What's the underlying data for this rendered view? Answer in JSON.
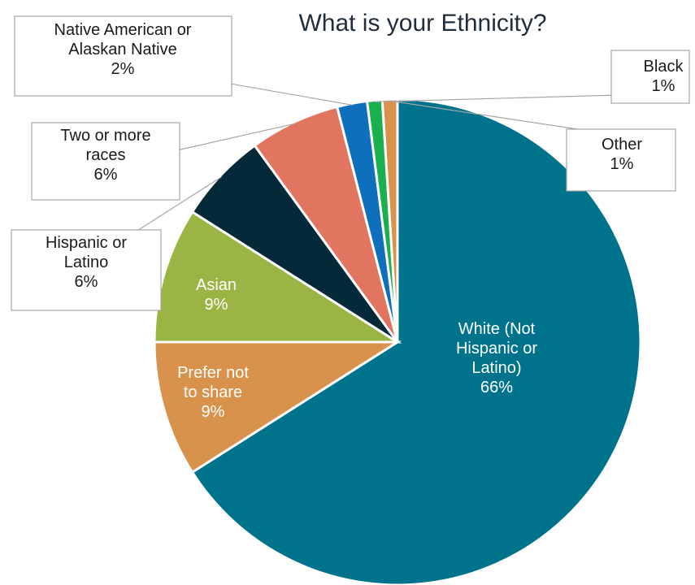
{
  "chart_data": {
    "type": "pie",
    "title": "What is your Ethnicity?",
    "slices": [
      {
        "label": "White (Not Hispanic or Latino)",
        "label_lines": [
          "White (Not",
          "Hispanic or",
          "Latino)"
        ],
        "value": 66,
        "value_text": "66%",
        "color": "#00738c",
        "label_color": "#ffffff"
      },
      {
        "label": "Prefer not to share",
        "label_lines": [
          "Prefer not",
          "to share"
        ],
        "value": 9,
        "value_text": "9%",
        "color": "#d9924b",
        "label_color": "#ffffff"
      },
      {
        "label": "Asian",
        "label_lines": [
          "Asian"
        ],
        "value": 9,
        "value_text": "9%",
        "color": "#9bb545",
        "label_color": "#ffffff"
      },
      {
        "label": "Hispanic or Latino",
        "label_lines": [
          "Hispanic or",
          "Latino"
        ],
        "value": 6,
        "value_text": "6%",
        "color": "#042a3a",
        "label_color": "#1a1a1a"
      },
      {
        "label": "Two or more races",
        "label_lines": [
          "Two or more",
          "races"
        ],
        "value": 6,
        "value_text": "6%",
        "color": "#e27560",
        "label_color": "#1a1a1a"
      },
      {
        "label": "Native American or Alaskan Native",
        "label_lines": [
          "Native American or",
          "Alaskan Native"
        ],
        "value": 2,
        "value_text": "2%",
        "color": "#0e6fbd",
        "label_color": "#1a1a1a"
      },
      {
        "label": "Black",
        "label_lines": [
          "Black"
        ],
        "value": 1,
        "value_text": "1%",
        "color": "#1ab050",
        "label_color": "#1a1a1a"
      },
      {
        "label": "Other",
        "label_lines": [
          "Other"
        ],
        "value": 1,
        "value_text": "1%",
        "color": "#d9924b",
        "label_color": "#1a1a1a"
      }
    ]
  }
}
